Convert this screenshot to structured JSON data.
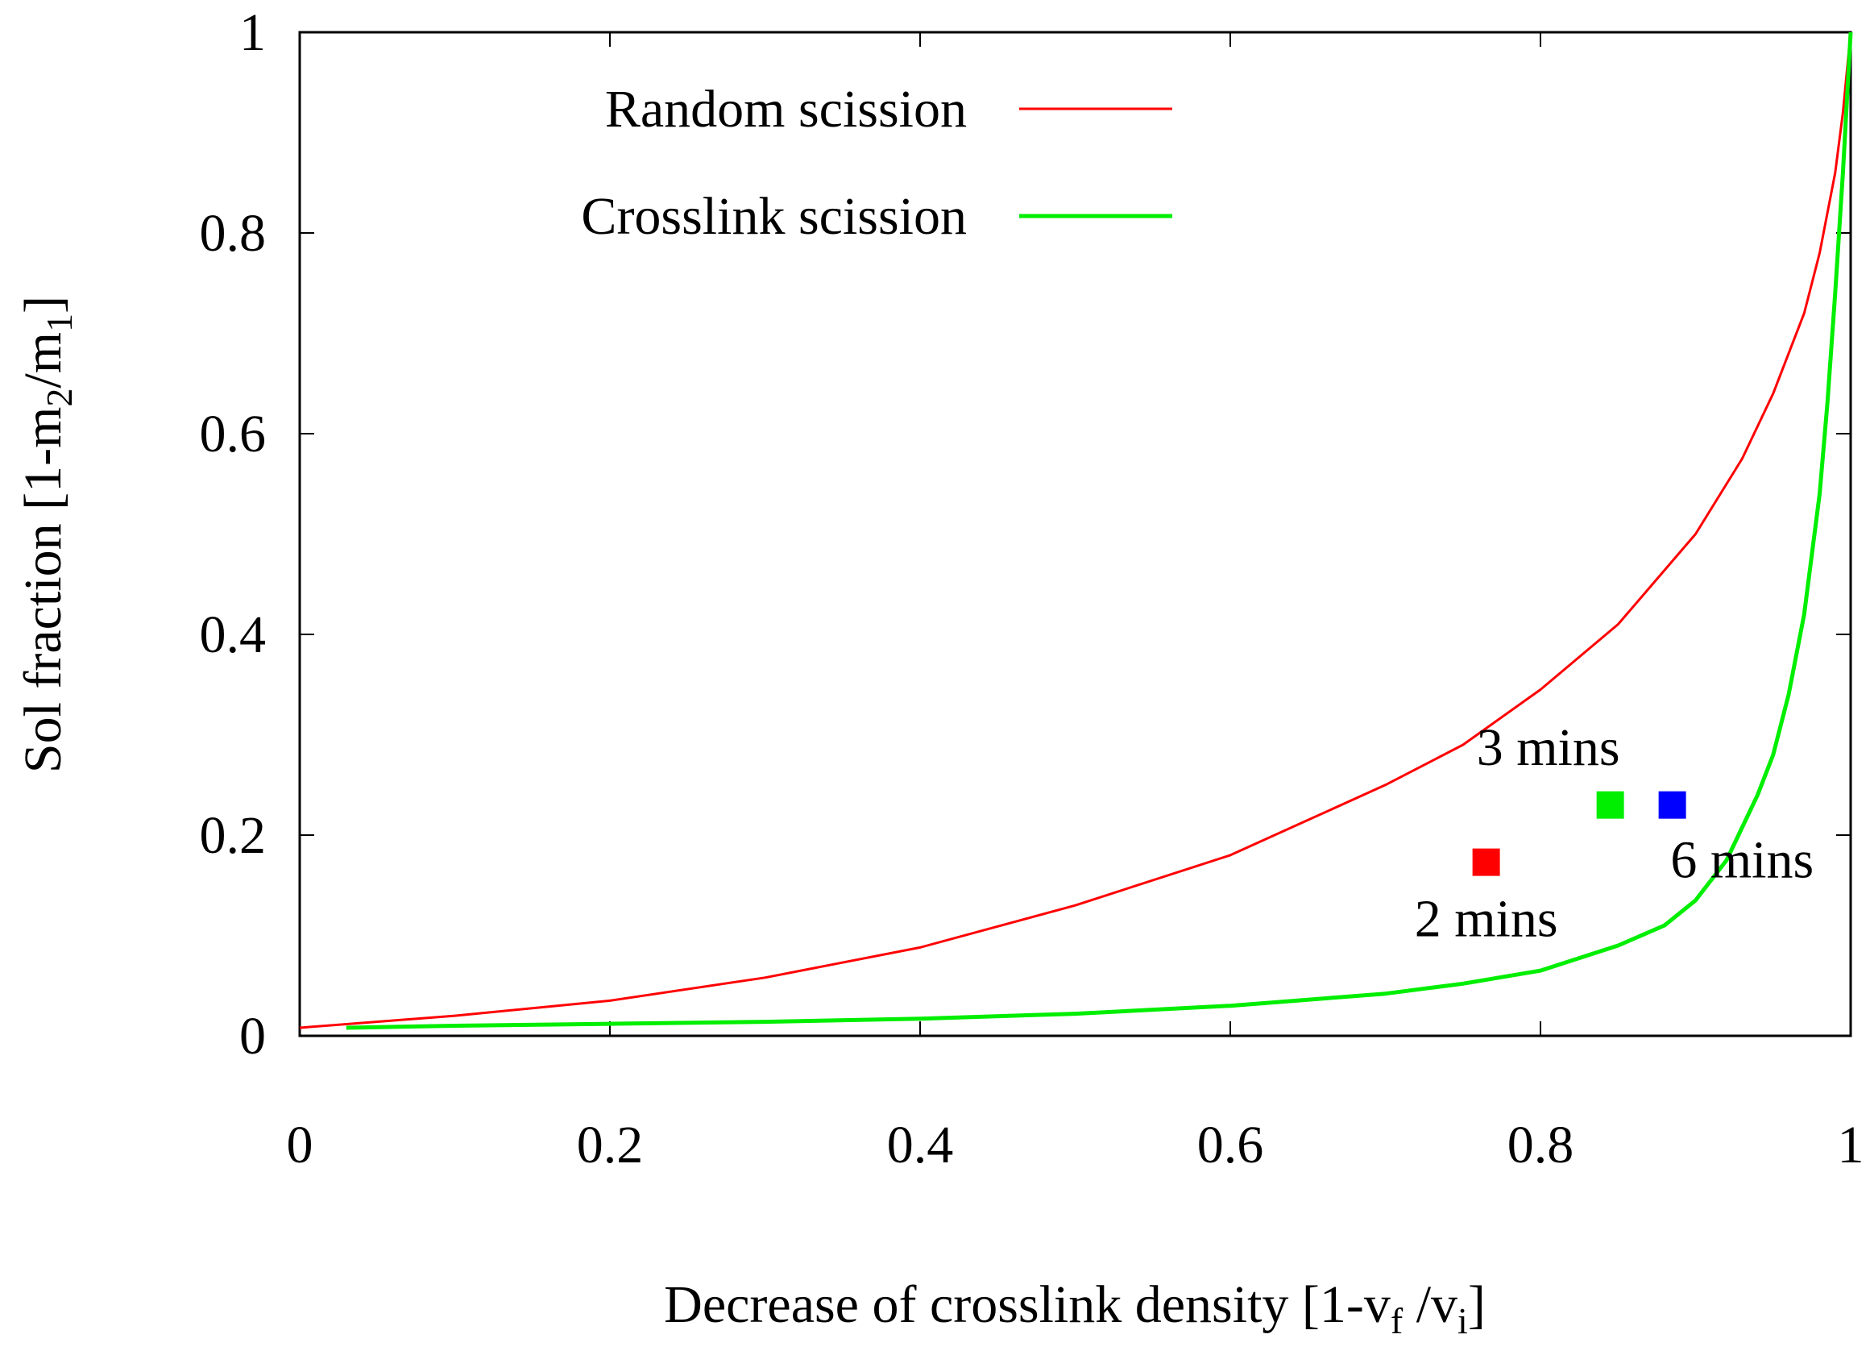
{
  "chart_data": {
    "type": "line",
    "title": "",
    "xlabel": {
      "main": "Decrease of crosslink density [1-v",
      "sub1": "f",
      "mid": " /v",
      "sub2": "i",
      "end": "]"
    },
    "ylabel": {
      "main": "Sol fraction [1-m",
      "sub1": "2",
      "mid": "/m",
      "sub2": "1",
      "end": "]"
    },
    "xlim": [
      0,
      1
    ],
    "ylim": [
      0,
      1
    ],
    "xticks": [
      {
        "value": 0,
        "label": "0"
      },
      {
        "value": 0.2,
        "label": "0.2"
      },
      {
        "value": 0.4,
        "label": "0.4"
      },
      {
        "value": 0.6,
        "label": "0.6"
      },
      {
        "value": 0.8,
        "label": "0.8"
      },
      {
        "value": 1,
        "label": "1"
      }
    ],
    "yticks": [
      {
        "value": 0,
        "label": "0"
      },
      {
        "value": 0.2,
        "label": "0.2"
      },
      {
        "value": 0.4,
        "label": "0.4"
      },
      {
        "value": 0.6,
        "label": "0.6"
      },
      {
        "value": 0.8,
        "label": "0.8"
      },
      {
        "value": 1,
        "label": "1"
      }
    ],
    "grid": false,
    "legend_position": "top-left",
    "series": [
      {
        "name": "Random scission",
        "color": "#ff0000",
        "x": [
          0,
          0.1,
          0.2,
          0.3,
          0.4,
          0.5,
          0.6,
          0.7,
          0.75,
          0.8,
          0.85,
          0.9,
          0.93,
          0.95,
          0.97,
          0.98,
          0.99,
          0.995,
          1.0
        ],
        "y": [
          0.008,
          0.02,
          0.035,
          0.058,
          0.088,
          0.13,
          0.18,
          0.25,
          0.29,
          0.345,
          0.41,
          0.5,
          0.575,
          0.64,
          0.72,
          0.78,
          0.86,
          0.92,
          1.0
        ]
      },
      {
        "name": "Crosslink scission",
        "color": "#00ee00",
        "x": [
          0.03,
          0.1,
          0.2,
          0.3,
          0.4,
          0.5,
          0.6,
          0.7,
          0.75,
          0.8,
          0.85,
          0.88,
          0.9,
          0.92,
          0.94,
          0.95,
          0.96,
          0.97,
          0.98,
          0.985,
          0.99,
          0.995,
          1.0
        ],
        "y": [
          0.008,
          0.01,
          0.012,
          0.014,
          0.017,
          0.022,
          0.03,
          0.042,
          0.052,
          0.065,
          0.09,
          0.11,
          0.135,
          0.175,
          0.24,
          0.28,
          0.34,
          0.42,
          0.54,
          0.63,
          0.74,
          0.86,
          1.0
        ]
      }
    ],
    "markers": [
      {
        "name": "2 mins",
        "x": 0.765,
        "y": 0.173,
        "color": "#ff0000"
      },
      {
        "name": "3 mins",
        "x": 0.845,
        "y": 0.23,
        "color": "#00ee00"
      },
      {
        "name": "6 mins",
        "x": 0.885,
        "y": 0.23,
        "color": "#0000ff"
      }
    ],
    "annotations": [
      {
        "text": "3 mins",
        "x": 0.805,
        "y": 0.27
      },
      {
        "text": "6 mins",
        "x": 0.93,
        "y": 0.158
      },
      {
        "text": "2 mins",
        "x": 0.765,
        "y": 0.099
      }
    ]
  }
}
